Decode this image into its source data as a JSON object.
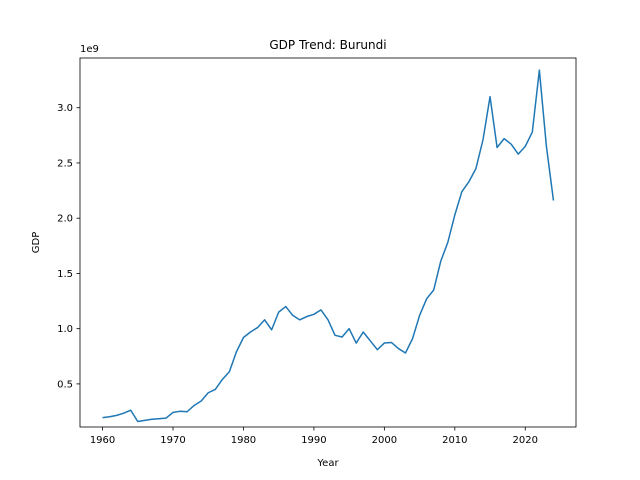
{
  "chart_data": {
    "type": "line",
    "title": "GDP Trend: Burundi",
    "xlabel": "Year",
    "ylabel": "GDP",
    "offset_label": "1e9",
    "xlim": [
      1956.8,
      2027.2
    ],
    "ylim": [
      0.11,
      3.45
    ],
    "x_ticks": [
      1960,
      1970,
      1980,
      1990,
      2000,
      2010,
      2020
    ],
    "y_ticks": [
      0.5,
      1.0,
      1.5,
      2.0,
      2.5,
      3.0
    ],
    "y_tick_labels": [
      "0.5",
      "1.0",
      "1.5",
      "2.0",
      "2.5",
      "3.0"
    ],
    "grid": false,
    "line_color": "#1f77b4",
    "series": [
      {
        "x": [
          1960,
          1961,
          1962,
          1963,
          1964,
          1965,
          1966,
          1967,
          1968,
          1969,
          1970,
          1971,
          1972,
          1973,
          1974,
          1975,
          1976,
          1977,
          1978,
          1979,
          1980,
          1981,
          1982,
          1983,
          1984,
          1985,
          1986,
          1987,
          1988,
          1989,
          1990,
          1991,
          1992,
          1993,
          1994,
          1995,
          1996,
          1997,
          1998,
          1999,
          2000,
          2001,
          2002,
          2003,
          2004,
          2005,
          2006,
          2007,
          2008,
          2009,
          2010,
          2011,
          2012,
          2013,
          2014,
          2015,
          2016,
          2017,
          2018,
          2019,
          2020,
          2021,
          2022,
          2023,
          2024
        ],
        "values": [
          0.195,
          0.203,
          0.215,
          0.235,
          0.262,
          0.16,
          0.17,
          0.18,
          0.185,
          0.19,
          0.242,
          0.252,
          0.248,
          0.305,
          0.345,
          0.42,
          0.45,
          0.54,
          0.61,
          0.79,
          0.92,
          0.97,
          1.01,
          1.08,
          0.99,
          1.15,
          1.2,
          1.12,
          1.08,
          1.11,
          1.13,
          1.17,
          1.08,
          0.94,
          0.925,
          1.0,
          0.87,
          0.97,
          0.89,
          0.81,
          0.87,
          0.875,
          0.82,
          0.78,
          0.91,
          1.12,
          1.27,
          1.35,
          1.61,
          1.78,
          2.03,
          2.24,
          2.33,
          2.45,
          2.71,
          3.1,
          2.64,
          2.72,
          2.67,
          2.58,
          2.65,
          2.78,
          3.34,
          2.65,
          2.16
        ]
      }
    ]
  }
}
